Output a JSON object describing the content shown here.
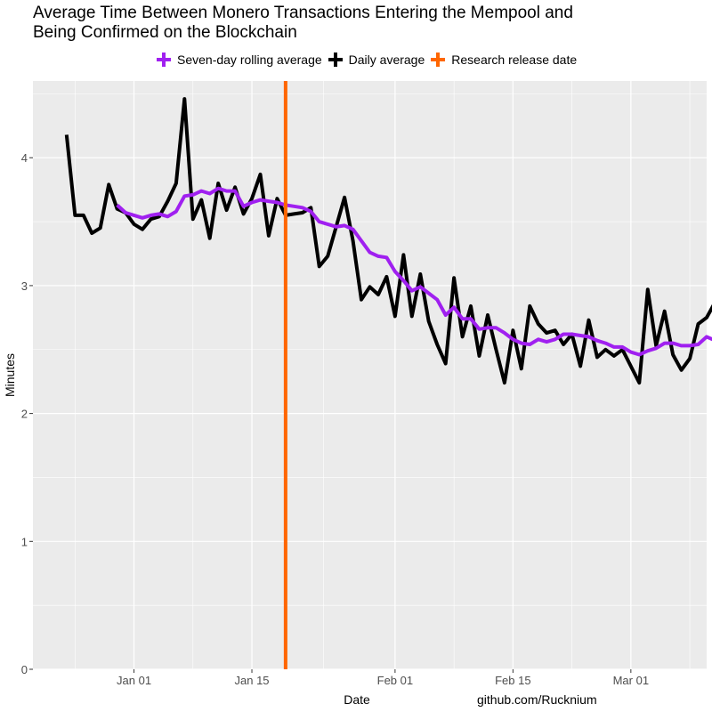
{
  "chart_data": {
    "type": "line",
    "title": "Average Time Between Monero Transactions Entering the Mempool and",
    "title_line2": "Being Confirmed on the Blockchain",
    "xlabel": "Date",
    "ylabel": "Minutes",
    "caption": "github.com/Rucknium",
    "ylim": [
      0,
      4.6
    ],
    "xlim": [
      "2021-12-20",
      "2022-03-10"
    ],
    "y_ticks": [
      0,
      1,
      2,
      3,
      4
    ],
    "x_ticks": [
      {
        "date": "2022-01-01",
        "label": "Jan 01"
      },
      {
        "date": "2022-01-15",
        "label": "Jan 15"
      },
      {
        "date": "2022-02-01",
        "label": "Feb 01"
      },
      {
        "date": "2022-02-15",
        "label": "Feb 15"
      },
      {
        "date": "2022-03-01",
        "label": "Mar 01"
      }
    ],
    "grid": true,
    "legend_position": "top",
    "legend": [
      {
        "name": "Seven-day rolling average",
        "color": "#a020f0"
      },
      {
        "name": "Daily average",
        "color": "#000000"
      },
      {
        "name": "Research release date",
        "color": "#ff6600"
      }
    ],
    "research_release_date": "2022-01-19",
    "series": [
      {
        "name": "Daily average",
        "color": "#000000",
        "start_date": "2021-12-24",
        "values": [
          4.18,
          3.55,
          3.55,
          3.41,
          3.45,
          3.79,
          3.6,
          3.57,
          3.48,
          3.44,
          3.52,
          3.54,
          3.66,
          3.8,
          4.46,
          3.52,
          3.67,
          3.37,
          3.8,
          3.59,
          3.77,
          3.56,
          3.68,
          3.87,
          3.39,
          3.68,
          3.55,
          3.56,
          3.57,
          3.61,
          3.15,
          3.23,
          3.46,
          3.69,
          3.35,
          2.89,
          2.99,
          2.93,
          3.07,
          2.76,
          3.24,
          2.76,
          3.09,
          2.72,
          2.54,
          2.39,
          3.06,
          2.6,
          2.84,
          2.45,
          2.77,
          2.5,
          2.24,
          2.65,
          2.35,
          2.84,
          2.7,
          2.63,
          2.65,
          2.54,
          2.62,
          2.37,
          2.73,
          2.44,
          2.5,
          2.45,
          2.5,
          2.37,
          2.24,
          2.97,
          2.53,
          2.8,
          2.46,
          2.34,
          2.43,
          2.7,
          2.75,
          2.87
        ]
      },
      {
        "name": "Seven-day rolling average",
        "color": "#a020f0",
        "start_date": "2021-12-30",
        "values": [
          3.63,
          3.57,
          3.55,
          3.53,
          3.55,
          3.56,
          3.54,
          3.58,
          3.7,
          3.71,
          3.74,
          3.72,
          3.76,
          3.74,
          3.74,
          3.62,
          3.65,
          3.67,
          3.66,
          3.65,
          3.63,
          3.62,
          3.61,
          3.58,
          3.5,
          3.48,
          3.46,
          3.47,
          3.44,
          3.35,
          3.26,
          3.23,
          3.22,
          3.11,
          3.04,
          2.96,
          2.99,
          2.94,
          2.89,
          2.77,
          2.83,
          2.74,
          2.74,
          2.66,
          2.67,
          2.67,
          2.63,
          2.58,
          2.55,
          2.54,
          2.58,
          2.56,
          2.58,
          2.62,
          2.62,
          2.61,
          2.6,
          2.57,
          2.55,
          2.52,
          2.52,
          2.48,
          2.46,
          2.49,
          2.51,
          2.55,
          2.55,
          2.53,
          2.53,
          2.54,
          2.6,
          2.57,
          2.62
        ]
      }
    ]
  }
}
